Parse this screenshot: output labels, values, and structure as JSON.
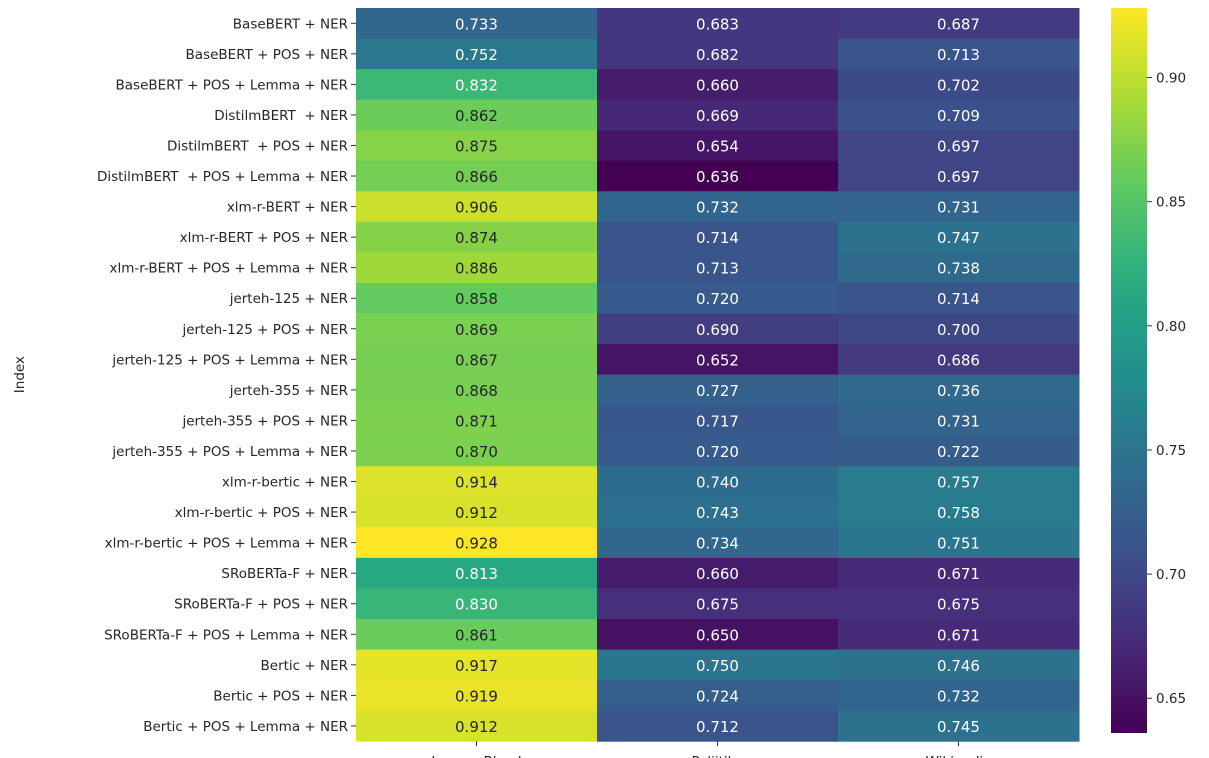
{
  "chart_data": {
    "type": "heatmap",
    "ylabel": "Index",
    "columns": [
      "Impure Blood",
      "Poliitika",
      "Wikipedia"
    ],
    "rows": [
      "BaseBERT + NER",
      "BaseBERT + POS + NER",
      "BaseBERT + POS + Lemma + NER",
      "DistilmBERT  + NER",
      "DistilmBERT  + POS + NER",
      "DistilmBERT  + POS + Lemma + NER",
      "xlm-r-BERT + NER",
      "xlm-r-BERT + POS + NER",
      "xlm-r-BERT + POS + Lemma + NER",
      "jerteh-125 + NER",
      "jerteh-125 + POS + NER",
      "jerteh-125 + POS + Lemma + NER",
      "jerteh-355 + NER",
      "jerteh-355 + POS + NER",
      "jerteh-355 + POS + Lemma + NER",
      "xlm-r-bertic + NER",
      "xlm-r-bertic + POS + NER",
      "xlm-r-bertic + POS + Lemma + NER",
      "SRoBERTa-F + NER",
      "SRoBERTa-F + POS + NER",
      "SRoBERTa-F + POS + Lemma + NER",
      "Bertic + NER",
      "Bertic + POS + NER",
      "Bertic + POS + Lemma + NER"
    ],
    "values": [
      [
        0.733,
        0.683,
        0.687
      ],
      [
        0.752,
        0.682,
        0.713
      ],
      [
        0.832,
        0.66,
        0.702
      ],
      [
        0.862,
        0.669,
        0.709
      ],
      [
        0.875,
        0.654,
        0.697
      ],
      [
        0.866,
        0.636,
        0.697
      ],
      [
        0.906,
        0.732,
        0.731
      ],
      [
        0.874,
        0.714,
        0.747
      ],
      [
        0.886,
        0.713,
        0.738
      ],
      [
        0.858,
        0.72,
        0.714
      ],
      [
        0.869,
        0.69,
        0.7
      ],
      [
        0.867,
        0.652,
        0.686
      ],
      [
        0.868,
        0.727,
        0.736
      ],
      [
        0.871,
        0.717,
        0.731
      ],
      [
        0.87,
        0.72,
        0.722
      ],
      [
        0.914,
        0.74,
        0.757
      ],
      [
        0.912,
        0.743,
        0.758
      ],
      [
        0.928,
        0.734,
        0.751
      ],
      [
        0.813,
        0.66,
        0.671
      ],
      [
        0.83,
        0.675,
        0.675
      ],
      [
        0.861,
        0.65,
        0.671
      ],
      [
        0.917,
        0.75,
        0.746
      ],
      [
        0.919,
        0.724,
        0.732
      ],
      [
        0.912,
        0.712,
        0.745
      ]
    ],
    "colormap": "viridis",
    "vmin": 0.636,
    "vmax": 0.928,
    "colorbar_ticks": [
      "0.65",
      "0.70",
      "0.75",
      "0.80",
      "0.85",
      "0.90"
    ]
  }
}
